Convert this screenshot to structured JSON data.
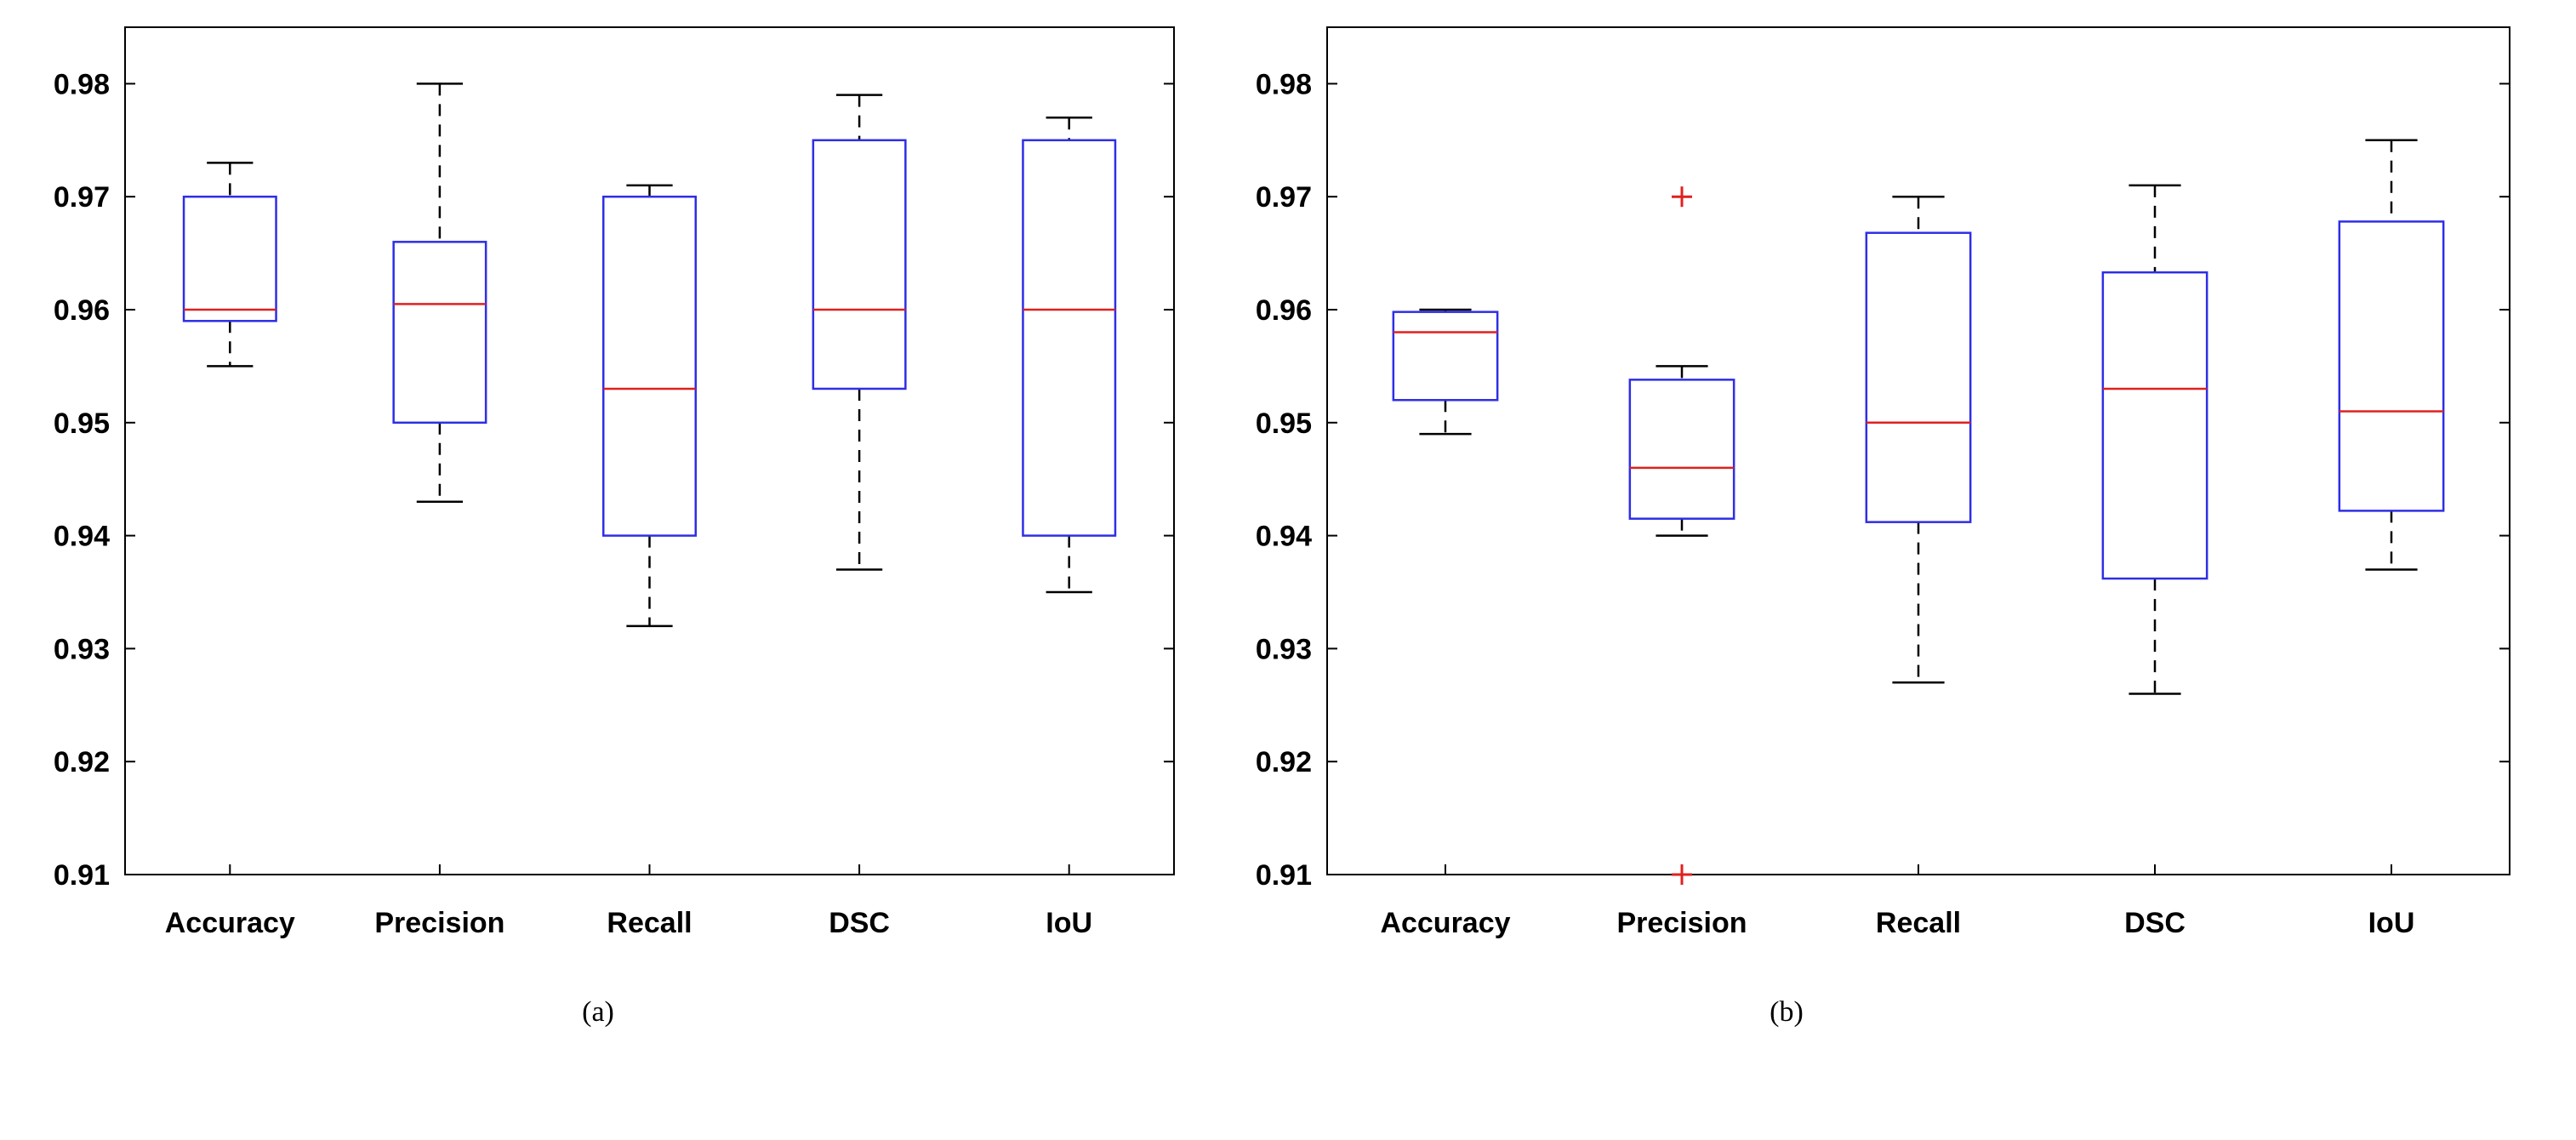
{
  "chart_data": [
    {
      "type": "box",
      "caption": "(a)",
      "categories": [
        "Accuracy",
        "Precision",
        "Recall",
        "DSC",
        "IoU"
      ],
      "ylim": [
        0.91,
        0.985
      ],
      "yticks": [
        "0.91",
        "0.92",
        "0.93",
        "0.94",
        "0.95",
        "0.96",
        "0.97",
        "0.98"
      ],
      "boxes": [
        {
          "name": "Accuracy",
          "whisker_low": 0.955,
          "q1": 0.959,
          "median": 0.96,
          "q3": 0.97,
          "whisker_high": 0.973,
          "outliers": []
        },
        {
          "name": "Precision",
          "whisker_low": 0.943,
          "q1": 0.95,
          "median": 0.9605,
          "q3": 0.966,
          "whisker_high": 0.98,
          "outliers": []
        },
        {
          "name": "Recall",
          "whisker_low": 0.932,
          "q1": 0.94,
          "median": 0.953,
          "q3": 0.97,
          "whisker_high": 0.971,
          "outliers": []
        },
        {
          "name": "DSC",
          "whisker_low": 0.937,
          "q1": 0.953,
          "median": 0.96,
          "q3": 0.975,
          "whisker_high": 0.979,
          "outliers": []
        },
        {
          "name": "IoU",
          "whisker_low": 0.935,
          "q1": 0.94,
          "median": 0.96,
          "q3": 0.975,
          "whisker_high": 0.977,
          "outliers": []
        }
      ],
      "colors": {
        "box": "#2e2ee6",
        "median": "#e02020",
        "whisker": "#000000",
        "outlier": "#e02020"
      }
    },
    {
      "type": "box",
      "caption": "(b)",
      "categories": [
        "Accuracy",
        "Precision",
        "Recall",
        "DSC",
        "IoU"
      ],
      "ylim": [
        0.91,
        0.985
      ],
      "yticks": [
        "0.91",
        "0.92",
        "0.93",
        "0.94",
        "0.95",
        "0.96",
        "0.97",
        "0.98"
      ],
      "boxes": [
        {
          "name": "Accuracy",
          "whisker_low": 0.949,
          "q1": 0.952,
          "median": 0.958,
          "q3": 0.9598,
          "whisker_high": 0.96,
          "outliers": []
        },
        {
          "name": "Precision",
          "whisker_low": 0.94,
          "q1": 0.9415,
          "median": 0.946,
          "q3": 0.9538,
          "whisker_high": 0.955,
          "outliers": [
            0.97,
            0.91
          ]
        },
        {
          "name": "Recall",
          "whisker_low": 0.927,
          "q1": 0.9412,
          "median": 0.95,
          "q3": 0.9668,
          "whisker_high": 0.97,
          "outliers": []
        },
        {
          "name": "DSC",
          "whisker_low": 0.926,
          "q1": 0.9362,
          "median": 0.953,
          "q3": 0.9633,
          "whisker_high": 0.971,
          "outliers": []
        },
        {
          "name": "IoU",
          "whisker_low": 0.937,
          "q1": 0.9422,
          "median": 0.951,
          "q3": 0.9678,
          "whisker_high": 0.975,
          "outliers": []
        }
      ],
      "colors": {
        "box": "#2e2ee6",
        "median": "#e02020",
        "whisker": "#000000",
        "outlier": "#e02020"
      }
    }
  ]
}
